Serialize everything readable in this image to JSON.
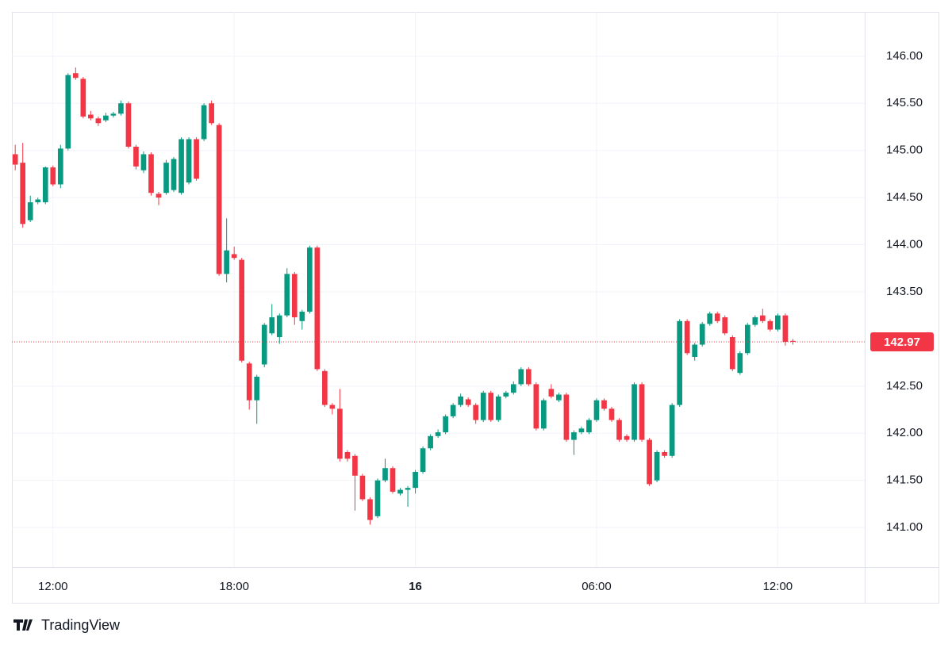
{
  "chart_data": {
    "type": "candlestick",
    "brand": "TradingView",
    "up_color": "#089981",
    "down_color": "#f23645",
    "grid": true,
    "xlim": [
      10.64,
      38.88
    ],
    "xticks": [
      {
        "value": 12,
        "label": "12:00"
      },
      {
        "value": 18,
        "label": "18:00"
      },
      {
        "value": 24,
        "label": "16"
      },
      {
        "value": 30,
        "label": "06:00"
      },
      {
        "value": 36,
        "label": "12:00"
      }
    ],
    "ylim": [
      140.58,
      146.47
    ],
    "yticks": [
      {
        "value": 141,
        "label": "141.00"
      },
      {
        "value": 141.5,
        "label": "141.50"
      },
      {
        "value": 142,
        "label": "142.00"
      },
      {
        "value": 142.5,
        "label": "142.50"
      },
      {
        "value": 143.5,
        "label": "143.50"
      },
      {
        "value": 144,
        "label": "144.00"
      },
      {
        "value": 144.5,
        "label": "144.50"
      },
      {
        "value": 145,
        "label": "145.00"
      },
      {
        "value": 145.5,
        "label": "145.50"
      },
      {
        "value": 146,
        "label": "146.00"
      }
    ],
    "last_price": 142.97,
    "x": [
      10.75,
      11,
      11.25,
      11.5,
      11.75,
      12,
      12.25,
      12.5,
      12.75,
      13,
      13.25,
      13.5,
      13.75,
      14,
      14.25,
      14.5,
      14.75,
      15,
      15.25,
      15.5,
      15.75,
      16,
      16.25,
      16.5,
      16.75,
      17,
      17.25,
      17.5,
      17.75,
      18,
      18.25,
      18.5,
      18.75,
      19,
      19.25,
      19.5,
      19.75,
      20,
      20.25,
      20.5,
      20.75,
      21,
      21.25,
      21.5,
      21.75,
      22,
      22.25,
      22.5,
      22.75,
      23,
      23.25,
      23.5,
      23.75,
      24,
      24.25,
      24.5,
      24.75,
      25,
      25.25,
      25.5,
      25.75,
      26,
      26.25,
      26.5,
      26.75,
      27,
      27.25,
      27.5,
      27.75,
      28,
      28.25,
      28.5,
      28.75,
      29,
      29.25,
      29.5,
      29.75,
      30,
      30.25,
      30.5,
      30.75,
      31,
      31.25,
      31.5,
      31.75,
      32,
      32.25,
      32.5,
      32.75,
      33,
      33.25,
      33.5,
      33.75,
      34,
      34.25,
      34.5,
      34.75,
      35,
      35.25,
      35.5,
      35.75,
      36,
      36.25,
      36.5
    ],
    "open": [
      144.96,
      144.87,
      144.26,
      144.45,
      144.45,
      144.82,
      144.64,
      145.02,
      145.82,
      145.76,
      145.38,
      145.34,
      145.32,
      145.37,
      145.39,
      145.5,
      145.04,
      144.79,
      144.96,
      144.54,
      144.55,
      144.58,
      144.55,
      144.66,
      145.12,
      145.12,
      145.5,
      145.27,
      143.69,
      143.9,
      143.84,
      142.74,
      142.35,
      142.73,
      143.06,
      143.02,
      143.25,
      143.69,
      143.19,
      143.29,
      143.97,
      142.66,
      142.3,
      142.26,
      141.8,
      141.76,
      141.55,
      141.3,
      141.12,
      141.5,
      141.63,
      141.36,
      141.4,
      141.42,
      141.59,
      141.84,
      141.97,
      142.01,
      142.18,
      142.3,
      142.36,
      142.3,
      142.14,
      142.43,
      142.14,
      142.39,
      142.43,
      142.52,
      142.68,
      142.52,
      142.05,
      142.47,
      142.35,
      142.41,
      141.93,
      142.01,
      142.01,
      142.14,
      142.35,
      142.26,
      142.14,
      141.97,
      141.93,
      142.52,
      141.93,
      141.5,
      141.8,
      141.76,
      142.3,
      143.19,
      142.81,
      142.94,
      143.16,
      143.27,
      143.23,
      143.02,
      142.64,
      142.85,
      143.15,
      143.25,
      143.19,
      143.1,
      143.25,
      142.98
    ],
    "high": [
      145.06,
      145.08,
      144.52,
      144.5,
      144.83,
      144.84,
      145.06,
      145.82,
      145.88,
      145.78,
      145.42,
      145.36,
      145.4,
      145.41,
      145.53,
      145.52,
      145.06,
      144.99,
      144.98,
      144.56,
      144.9,
      144.93,
      145.14,
      145.14,
      145.14,
      145.5,
      145.53,
      145.29,
      144.28,
      143.98,
      143.86,
      142.76,
      142.62,
      143.17,
      143.37,
      143.27,
      143.75,
      143.71,
      143.31,
      143.99,
      143.99,
      142.68,
      142.32,
      142.47,
      141.82,
      141.78,
      141.57,
      141.32,
      141.52,
      141.73,
      141.65,
      141.42,
      141.44,
      141.61,
      141.86,
      141.99,
      142.04,
      142.2,
      142.32,
      142.42,
      142.38,
      142.32,
      142.45,
      142.45,
      142.41,
      142.45,
      142.55,
      142.7,
      142.7,
      142.54,
      142.37,
      142.52,
      142.43,
      142.43,
      142.03,
      142.07,
      142.16,
      142.37,
      142.37,
      142.28,
      142.16,
      141.99,
      142.54,
      142.54,
      141.95,
      141.82,
      141.82,
      142.32,
      143.21,
      143.21,
      142.96,
      143.18,
      143.29,
      143.29,
      143.25,
      143.04,
      142.87,
      143.17,
      143.25,
      143.32,
      143.21,
      143.27,
      143.27,
      143.0
    ],
    "low": [
      144.79,
      144.18,
      144.24,
      144.43,
      144.43,
      144.62,
      144.6,
      145.0,
      145.75,
      145.34,
      145.32,
      145.26,
      145.3,
      145.35,
      145.37,
      145.02,
      144.8,
      144.76,
      144.52,
      144.42,
      144.53,
      144.56,
      144.53,
      144.64,
      144.68,
      145.1,
      145.27,
      143.67,
      143.6,
      143.84,
      142.75,
      142.25,
      142.1,
      142.7,
      143.04,
      142.95,
      143.23,
      143.15,
      143.1,
      143.27,
      142.66,
      142.28,
      142.2,
      141.7,
      141.7,
      141.18,
      141.28,
      141.03,
      141.1,
      141.48,
      141.36,
      141.34,
      141.22,
      141.36,
      141.57,
      141.82,
      141.95,
      141.99,
      142.16,
      142.28,
      142.28,
      142.1,
      142.12,
      142.12,
      142.12,
      142.37,
      142.41,
      142.5,
      142.5,
      142.03,
      142.03,
      142.37,
      142.33,
      141.91,
      141.77,
      141.99,
      141.99,
      142.12,
      142.24,
      142.12,
      141.91,
      141.91,
      141.91,
      141.91,
      141.44,
      141.48,
      141.74,
      141.74,
      142.28,
      142.83,
      142.77,
      142.92,
      143.14,
      143.17,
      143.04,
      142.66,
      142.62,
      142.83,
      143.13,
      143.17,
      143.08,
      143.08,
      142.93,
      142.94
    ],
    "close": [
      144.85,
      144.22,
      144.45,
      144.48,
      144.82,
      144.64,
      145.02,
      145.8,
      145.77,
      145.36,
      145.34,
      145.29,
      145.37,
      145.39,
      145.5,
      145.04,
      144.83,
      144.96,
      144.55,
      144.5,
      144.87,
      144.91,
      145.12,
      145.12,
      144.7,
      145.48,
      145.29,
      143.69,
      143.94,
      143.86,
      142.77,
      142.35,
      142.6,
      143.15,
      143.23,
      143.25,
      143.69,
      143.23,
      143.29,
      143.97,
      142.68,
      142.3,
      142.26,
      141.73,
      141.73,
      141.55,
      141.3,
      141.08,
      141.5,
      141.63,
      141.38,
      141.4,
      141.42,
      141.59,
      141.84,
      141.97,
      142.01,
      142.18,
      142.3,
      142.39,
      142.3,
      142.14,
      142.43,
      142.14,
      142.39,
      142.43,
      142.52,
      142.68,
      142.52,
      142.05,
      142.35,
      142.39,
      142.41,
      141.93,
      142.01,
      142.05,
      142.14,
      142.35,
      142.26,
      142.14,
      141.93,
      141.93,
      142.52,
      141.93,
      141.46,
      141.8,
      141.76,
      142.3,
      143.19,
      142.85,
      142.94,
      143.16,
      143.27,
      143.19,
      143.06,
      142.68,
      142.85,
      143.15,
      143.23,
      143.19,
      143.1,
      143.25,
      142.97,
      142.97
    ]
  }
}
